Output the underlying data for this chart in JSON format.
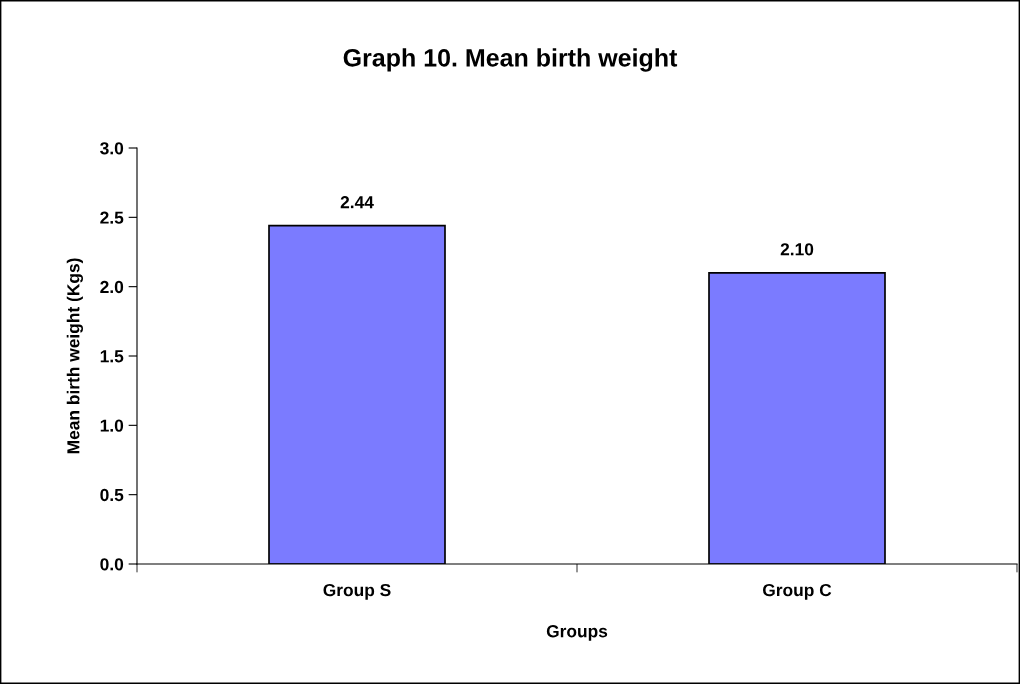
{
  "chart_data": {
    "type": "bar",
    "title": "Graph 10. Mean birth weight",
    "xlabel": "Groups",
    "ylabel": "Mean birth weight (Kgs)",
    "categories": [
      "Group S",
      "Group C"
    ],
    "values": [
      2.44,
      2.1
    ],
    "color": "#7b7bff",
    "ylim": [
      0,
      3.0
    ],
    "yticks": [
      {
        "value": 0,
        "label": "0.0"
      },
      {
        "value": 0.5,
        "label": "0.5"
      },
      {
        "value": 1.0,
        "label": "1.0"
      },
      {
        "value": 1.5,
        "label": "1.5"
      },
      {
        "value": 2.0,
        "label": "2.0"
      },
      {
        "value": 2.5,
        "label": "2.5"
      },
      {
        "value": 3.0,
        "label": "3.0"
      }
    ],
    "value_labels": [
      "2.44",
      "2.10"
    ],
    "grid": false,
    "legend": false
  }
}
